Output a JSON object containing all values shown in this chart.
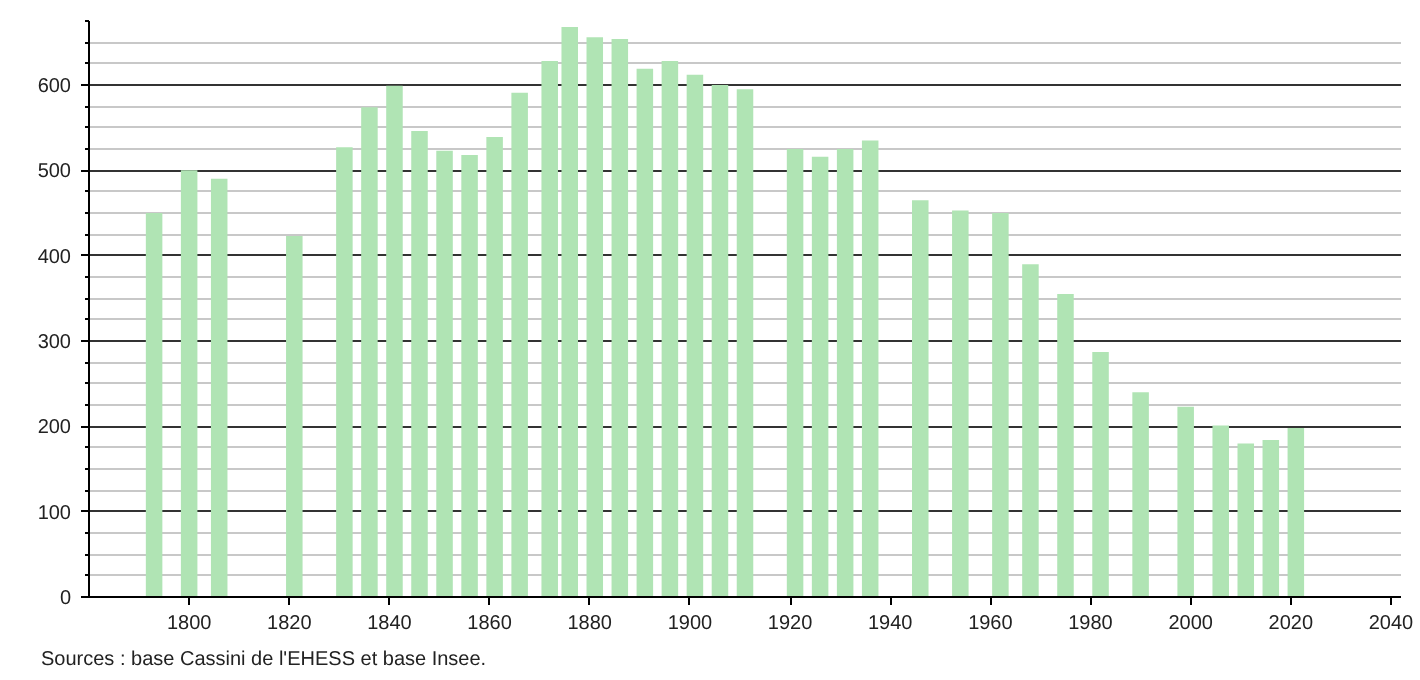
{
  "chart_data": {
    "type": "bar",
    "x": [
      1793,
      1800,
      1806,
      1821,
      1831,
      1836,
      1841,
      1846,
      1851,
      1856,
      1861,
      1866,
      1872,
      1876,
      1881,
      1886,
      1891,
      1896,
      1901,
      1906,
      1911,
      1921,
      1926,
      1931,
      1936,
      1946,
      1954,
      1962,
      1968,
      1975,
      1982,
      1990,
      1999,
      2006,
      2011,
      2016,
      2021
    ],
    "values": [
      450,
      500,
      490,
      423,
      527,
      574,
      599,
      546,
      523,
      518,
      539,
      591,
      628,
      668,
      656,
      654,
      619,
      628,
      612,
      600,
      595,
      525,
      516,
      525,
      535,
      465,
      453,
      450,
      390,
      355,
      287,
      240,
      223,
      201,
      180,
      184,
      198
    ],
    "color": "#b0e4b4",
    "xlim": [
      1780,
      2042
    ],
    "xticks": [
      1800,
      1820,
      1840,
      1860,
      1880,
      1900,
      1920,
      1940,
      1960,
      1980,
      2000,
      2020,
      2040
    ],
    "ylim": [
      0,
      675
    ],
    "yticks": [
      0,
      100,
      200,
      300,
      400,
      500,
      600
    ],
    "grid": "y",
    "annotations": [
      "Sources : base Cassini de l'EHESS et base Insee."
    ]
  }
}
